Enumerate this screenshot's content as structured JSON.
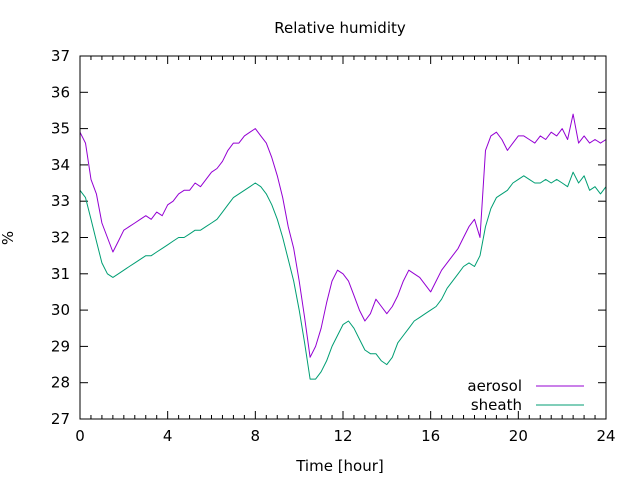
{
  "chart_data": {
    "type": "line",
    "title": "Relative humidity",
    "xlabel": "Time [hour]",
    "ylabel": "%",
    "xlim": [
      0,
      24
    ],
    "ylim": [
      27,
      37
    ],
    "xticks": [
      0,
      4,
      8,
      12,
      16,
      20,
      24
    ],
    "xtick_labels": [
      "0",
      "4",
      "8",
      "12",
      "16",
      "20",
      "24"
    ],
    "yticks": [
      27,
      28,
      29,
      30,
      31,
      32,
      33,
      34,
      35,
      36,
      37
    ],
    "ytick_labels": [
      "27",
      "28",
      "29",
      "30",
      "31",
      "32",
      "33",
      "34",
      "35",
      "36",
      "37"
    ],
    "grid": false,
    "legend_position": "bottom-right",
    "series": [
      {
        "name": "aerosol",
        "color": "#9400d3",
        "x": [
          0,
          0.25,
          0.5,
          0.75,
          1,
          1.25,
          1.5,
          1.75,
          2,
          2.25,
          2.5,
          2.75,
          3,
          3.25,
          3.5,
          3.75,
          4,
          4.25,
          4.5,
          4.75,
          5,
          5.25,
          5.5,
          5.75,
          6,
          6.25,
          6.5,
          6.75,
          7,
          7.25,
          7.5,
          7.75,
          8,
          8.25,
          8.5,
          8.75,
          9,
          9.25,
          9.5,
          9.75,
          10,
          10.25,
          10.5,
          10.75,
          11,
          11.25,
          11.5,
          11.75,
          12,
          12.25,
          12.5,
          12.75,
          13,
          13.25,
          13.5,
          13.75,
          14,
          14.25,
          14.5,
          14.75,
          15,
          15.25,
          15.5,
          15.75,
          16,
          16.25,
          16.5,
          16.75,
          17,
          17.25,
          17.5,
          17.75,
          18,
          18.25,
          18.5,
          18.75,
          19,
          19.25,
          19.5,
          19.75,
          20,
          20.25,
          20.5,
          20.75,
          21,
          21.25,
          21.5,
          21.75,
          22,
          22.25,
          22.5,
          22.75,
          23,
          23.25,
          23.5,
          23.75,
          24
        ],
        "values": [
          34.9,
          34.6,
          33.6,
          33.2,
          32.4,
          32.0,
          31.6,
          31.9,
          32.2,
          32.3,
          32.4,
          32.5,
          32.6,
          32.5,
          32.7,
          32.6,
          32.9,
          33.0,
          33.2,
          33.3,
          33.3,
          33.5,
          33.4,
          33.6,
          33.8,
          33.9,
          34.1,
          34.4,
          34.6,
          34.6,
          34.8,
          34.9,
          35.0,
          34.8,
          34.6,
          34.2,
          33.7,
          33.1,
          32.3,
          31.7,
          30.8,
          29.8,
          28.7,
          29.0,
          29.5,
          30.2,
          30.8,
          31.1,
          31.0,
          30.8,
          30.4,
          30.0,
          29.7,
          29.9,
          30.3,
          30.1,
          29.9,
          30.1,
          30.4,
          30.8,
          31.1,
          31.0,
          30.9,
          30.7,
          30.5,
          30.8,
          31.1,
          31.3,
          31.5,
          31.7,
          32.0,
          32.3,
          32.5,
          32.0,
          34.4,
          34.8,
          34.9,
          34.7,
          34.4,
          34.6,
          34.8,
          34.8,
          34.7,
          34.6,
          34.8,
          34.7,
          34.9,
          34.8,
          35.0,
          34.7,
          35.4,
          34.6,
          34.8,
          34.6,
          34.7,
          34.6,
          34.7
        ]
      },
      {
        "name": "sheath",
        "color": "#009e73",
        "x": [
          0,
          0.25,
          0.5,
          0.75,
          1,
          1.25,
          1.5,
          1.75,
          2,
          2.25,
          2.5,
          2.75,
          3,
          3.25,
          3.5,
          3.75,
          4,
          4.25,
          4.5,
          4.75,
          5,
          5.25,
          5.5,
          5.75,
          6,
          6.25,
          6.5,
          6.75,
          7,
          7.25,
          7.5,
          7.75,
          8,
          8.25,
          8.5,
          8.75,
          9,
          9.25,
          9.5,
          9.75,
          10,
          10.25,
          10.5,
          10.75,
          11,
          11.25,
          11.5,
          11.75,
          12,
          12.25,
          12.5,
          12.75,
          13,
          13.25,
          13.5,
          13.75,
          14,
          14.25,
          14.5,
          14.75,
          15,
          15.25,
          15.5,
          15.75,
          16,
          16.25,
          16.5,
          16.75,
          17,
          17.25,
          17.5,
          17.75,
          18,
          18.25,
          18.5,
          18.75,
          19,
          19.25,
          19.5,
          19.75,
          20,
          20.25,
          20.5,
          20.75,
          21,
          21.25,
          21.5,
          21.75,
          22,
          22.25,
          22.5,
          22.75,
          23,
          23.25,
          23.5,
          23.75,
          24
        ],
        "values": [
          33.3,
          33.1,
          32.5,
          31.9,
          31.3,
          31.0,
          30.9,
          31.0,
          31.1,
          31.2,
          31.3,
          31.4,
          31.5,
          31.5,
          31.6,
          31.7,
          31.8,
          31.9,
          32.0,
          32.0,
          32.1,
          32.2,
          32.2,
          32.3,
          32.4,
          32.5,
          32.7,
          32.9,
          33.1,
          33.2,
          33.3,
          33.4,
          33.5,
          33.4,
          33.2,
          32.9,
          32.5,
          32.0,
          31.4,
          30.8,
          30.0,
          29.1,
          28.1,
          28.1,
          28.3,
          28.6,
          29.0,
          29.3,
          29.6,
          29.7,
          29.5,
          29.2,
          28.9,
          28.8,
          28.8,
          28.6,
          28.5,
          28.7,
          29.1,
          29.3,
          29.5,
          29.7,
          29.8,
          29.9,
          30.0,
          30.1,
          30.3,
          30.6,
          30.8,
          31.0,
          31.2,
          31.3,
          31.2,
          31.5,
          32.3,
          32.8,
          33.1,
          33.2,
          33.3,
          33.5,
          33.6,
          33.7,
          33.6,
          33.5,
          33.5,
          33.6,
          33.5,
          33.6,
          33.5,
          33.4,
          33.8,
          33.5,
          33.7,
          33.3,
          33.4,
          33.2,
          33.4
        ]
      }
    ]
  }
}
